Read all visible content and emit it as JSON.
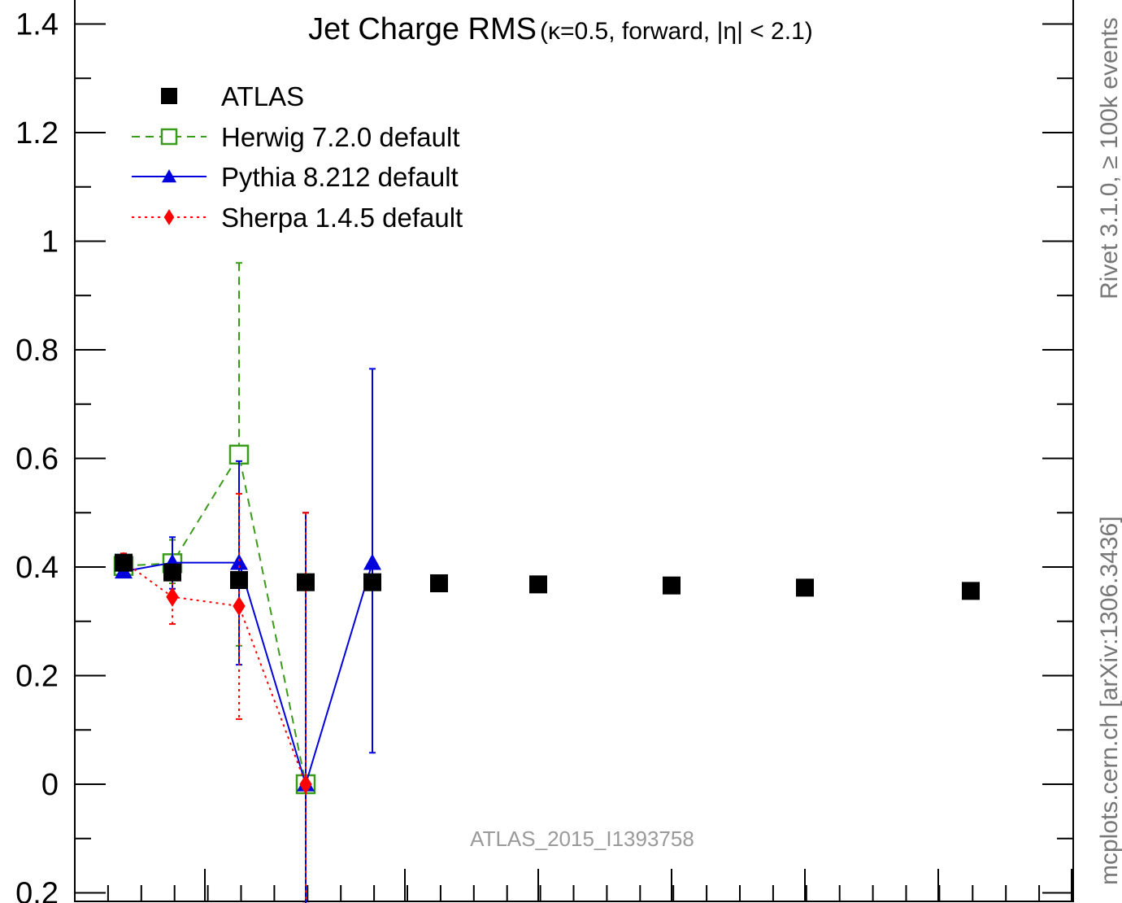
{
  "chart_data": {
    "type": "scatter",
    "title": "Jet Charge RMS",
    "title_suffix": "(κ=0.5, forward, |η| < 2.1)",
    "xlabel": "",
    "ylabel": "",
    "ylim": [
      -0.2,
      1.4
    ],
    "y_ticks": [
      1.4,
      1.2,
      1,
      0.8,
      0.6,
      0.4,
      0.2,
      0,
      -0.2
    ],
    "y_tick_labels": [
      "1.4",
      "1.2",
      "1",
      "0.8",
      "0.6",
      "0.4",
      "0.2",
      "0",
      "0.2"
    ],
    "legend_position": "top-left",
    "watermark": "ATLAS_2015_I1393758",
    "side_label": "mcplots.cern.ch [arXiv:1306.3436]",
    "side_label_top": "Rivet 3.1.0, ≥ 100k events",
    "series": [
      {
        "name": "ATLAS",
        "color": "#000000",
        "marker": "filled-square",
        "line": "none",
        "x": [
          0.05,
          0.2,
          0.4,
          0.6,
          0.8,
          1.0,
          1.3,
          1.7,
          2.1,
          2.6
        ],
        "y": [
          0.408,
          0.39,
          0.376,
          0.372,
          0.372,
          0.37,
          0.368,
          0.366,
          0.362,
          0.356
        ]
      },
      {
        "name": "Herwig 7.2.0 default",
        "color": "#3a9b1a",
        "marker": "open-square",
        "line": "dashed",
        "x": [
          0.05,
          0.2,
          0.4,
          0.6
        ],
        "y": [
          0.402,
          0.407,
          0.607,
          0.0
        ],
        "err_low": [
          0.39,
          0.37,
          0.255,
          -0.22
        ],
        "err_high": [
          0.415,
          0.45,
          0.96,
          0.5
        ]
      },
      {
        "name": "Pythia 8.212 default",
        "color": "#0000dd",
        "marker": "filled-triangle",
        "line": "solid",
        "x": [
          0.05,
          0.2,
          0.4,
          0.6,
          0.8
        ],
        "y": [
          0.392,
          0.408,
          0.408,
          0.0,
          0.408
        ],
        "err_low": [
          0.385,
          0.36,
          0.22,
          -0.22,
          0.058
        ],
        "err_high": [
          0.4,
          0.455,
          0.595,
          0.5,
          0.765
        ]
      },
      {
        "name": "Sherpa 1.4.5 default",
        "color": "#ff0000",
        "marker": "filled-diamond",
        "line": "dotted",
        "x": [
          0.05,
          0.2,
          0.4,
          0.6
        ],
        "y": [
          0.41,
          0.345,
          0.328,
          0.0
        ],
        "err_low": [
          0.395,
          0.295,
          0.12,
          -0.22
        ],
        "err_high": [
          0.425,
          0.395,
          0.535,
          0.5
        ]
      }
    ]
  }
}
